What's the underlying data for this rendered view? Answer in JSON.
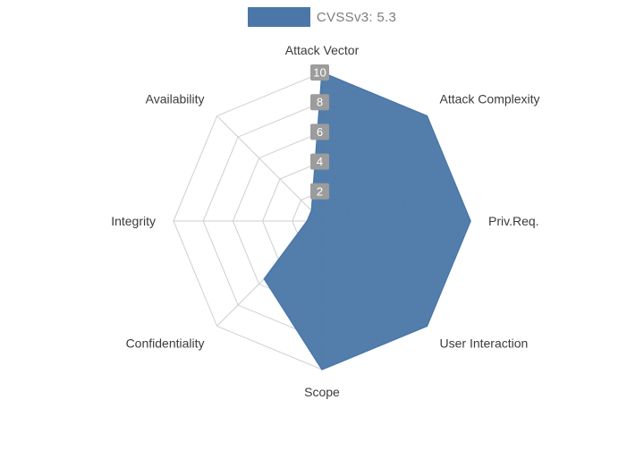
{
  "legend": {
    "label": "CVSSv3: 5.3",
    "swatch_color": "#4a77a8"
  },
  "chart_data": {
    "type": "radar",
    "title": "CVSSv3: 5.3",
    "categories": [
      "Attack Vector",
      "Attack Complexity",
      "Priv.Req.",
      "User Interaction",
      "Scope",
      "Confidentiality",
      "Integrity",
      "Availability"
    ],
    "series": [
      {
        "name": "CVSSv3: 5.3",
        "values": [
          10,
          10,
          10,
          10,
          10,
          5.5,
          1,
          1
        ]
      }
    ],
    "radial_ticks": [
      2,
      4,
      6,
      8,
      10
    ],
    "max": 10,
    "grid": true,
    "legend_position": "top",
    "fill_color": "#4a77a8",
    "fill_opacity": 0.95,
    "grid_color": "#cfcfcf",
    "tick_badge_color": "#9c9c9c",
    "tick_text_color": "#ffffff",
    "axis_label_color": "#3b3b3b"
  }
}
